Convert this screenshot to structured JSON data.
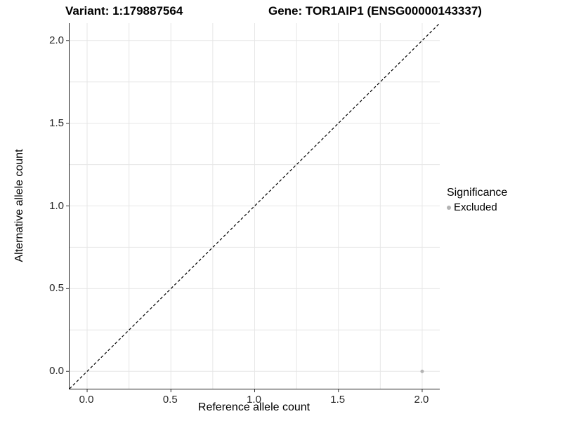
{
  "title": {
    "variant": "Variant: 1:179887564",
    "gene": "Gene: TOR1AIP1 (ENSG00000143337)"
  },
  "chart_data": {
    "type": "scatter",
    "title_left": "Variant: 1:179887564",
    "title_right": "Gene: TOR1AIP1 (ENSG00000143337)",
    "xlabel": "Reference allele count",
    "ylabel": "Alternative allele count",
    "xlim": [
      -0.105,
      2.105
    ],
    "ylim": [
      -0.105,
      2.105
    ],
    "x_ticks": [
      0.0,
      0.5,
      1.0,
      1.5,
      2.0
    ],
    "y_ticks": [
      0.0,
      0.5,
      1.0,
      1.5,
      2.0
    ],
    "minor_gridlines": [
      0.25,
      0.75,
      1.25,
      1.75
    ],
    "grid": true,
    "identity_line": {
      "style": "dashed",
      "color": "#000000"
    },
    "series": [
      {
        "name": "Excluded",
        "color": "#b3b3b3",
        "points": [
          {
            "x": 2.0,
            "y": 0.0
          }
        ]
      }
    ],
    "legend": {
      "title": "Significance",
      "position": "right",
      "entries": [
        {
          "label": "Excluded",
          "color": "#b3b3b3"
        }
      ]
    }
  },
  "colors": {
    "background": "#ffffff",
    "grid": "#e6e6e6",
    "axis_line": "#222222",
    "tick_mark": "#333333",
    "tick_text": "#262626",
    "title_text": "#000000",
    "point": "#b3b3b3"
  }
}
